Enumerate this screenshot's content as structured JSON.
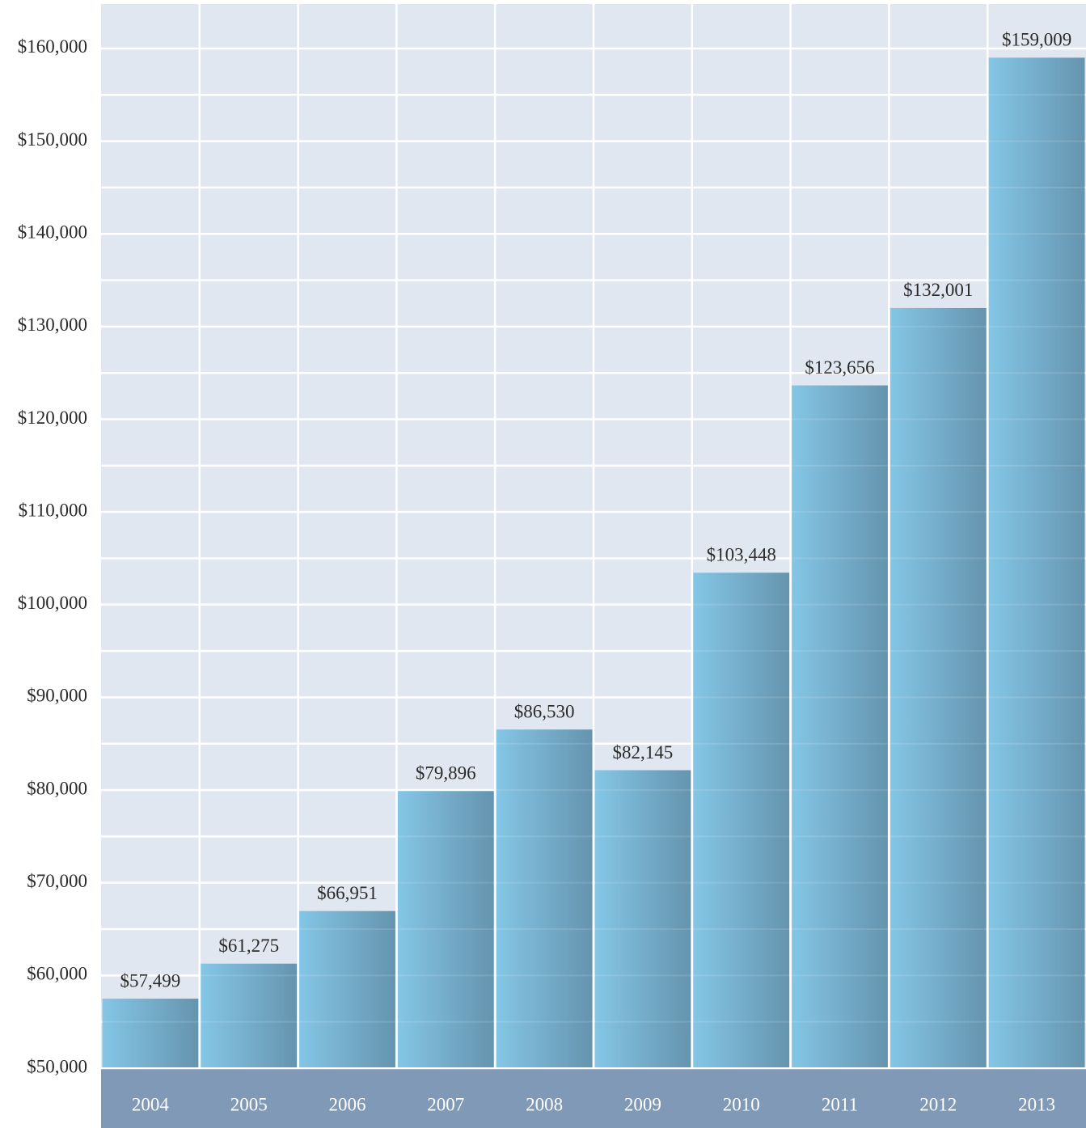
{
  "chart_data": {
    "type": "bar",
    "categories": [
      "2004",
      "2005",
      "2006",
      "2007",
      "2008",
      "2009",
      "2010",
      "2011",
      "2012",
      "2013"
    ],
    "values": [
      57499,
      61275,
      66951,
      79896,
      86530,
      82145,
      103448,
      123656,
      132001,
      159009
    ],
    "value_labels": [
      "$57,499",
      "$61,275",
      "$66,951",
      "$79,896",
      "$86,530",
      "$82,145",
      "$103,448",
      "$123,656",
      "$132,001",
      "$159,009"
    ],
    "color": "#7ab8d8",
    "ylim": [
      50000,
      165000
    ],
    "yticks": [
      {
        "value": 50000,
        "label": "$50,000"
      },
      {
        "value": 60000,
        "label": "$60,000"
      },
      {
        "value": 70000,
        "label": "$70,000"
      },
      {
        "value": 80000,
        "label": "$80,000"
      },
      {
        "value": 90000,
        "label": "$90,000"
      },
      {
        "value": 100000,
        "label": "$100,000"
      },
      {
        "value": 110000,
        "label": "$110,000"
      },
      {
        "value": 120000,
        "label": "$120,000"
      },
      {
        "value": 130000,
        "label": "$130,000"
      },
      {
        "value": 140000,
        "label": "$140,000"
      },
      {
        "value": 150000,
        "label": "$150,000"
      },
      {
        "value": 160000,
        "label": "$160,000"
      }
    ],
    "minor_yticks": [
      55000,
      65000,
      75000,
      85000,
      95000,
      105000,
      115000,
      125000,
      135000,
      145000,
      155000
    ],
    "grid": true
  }
}
